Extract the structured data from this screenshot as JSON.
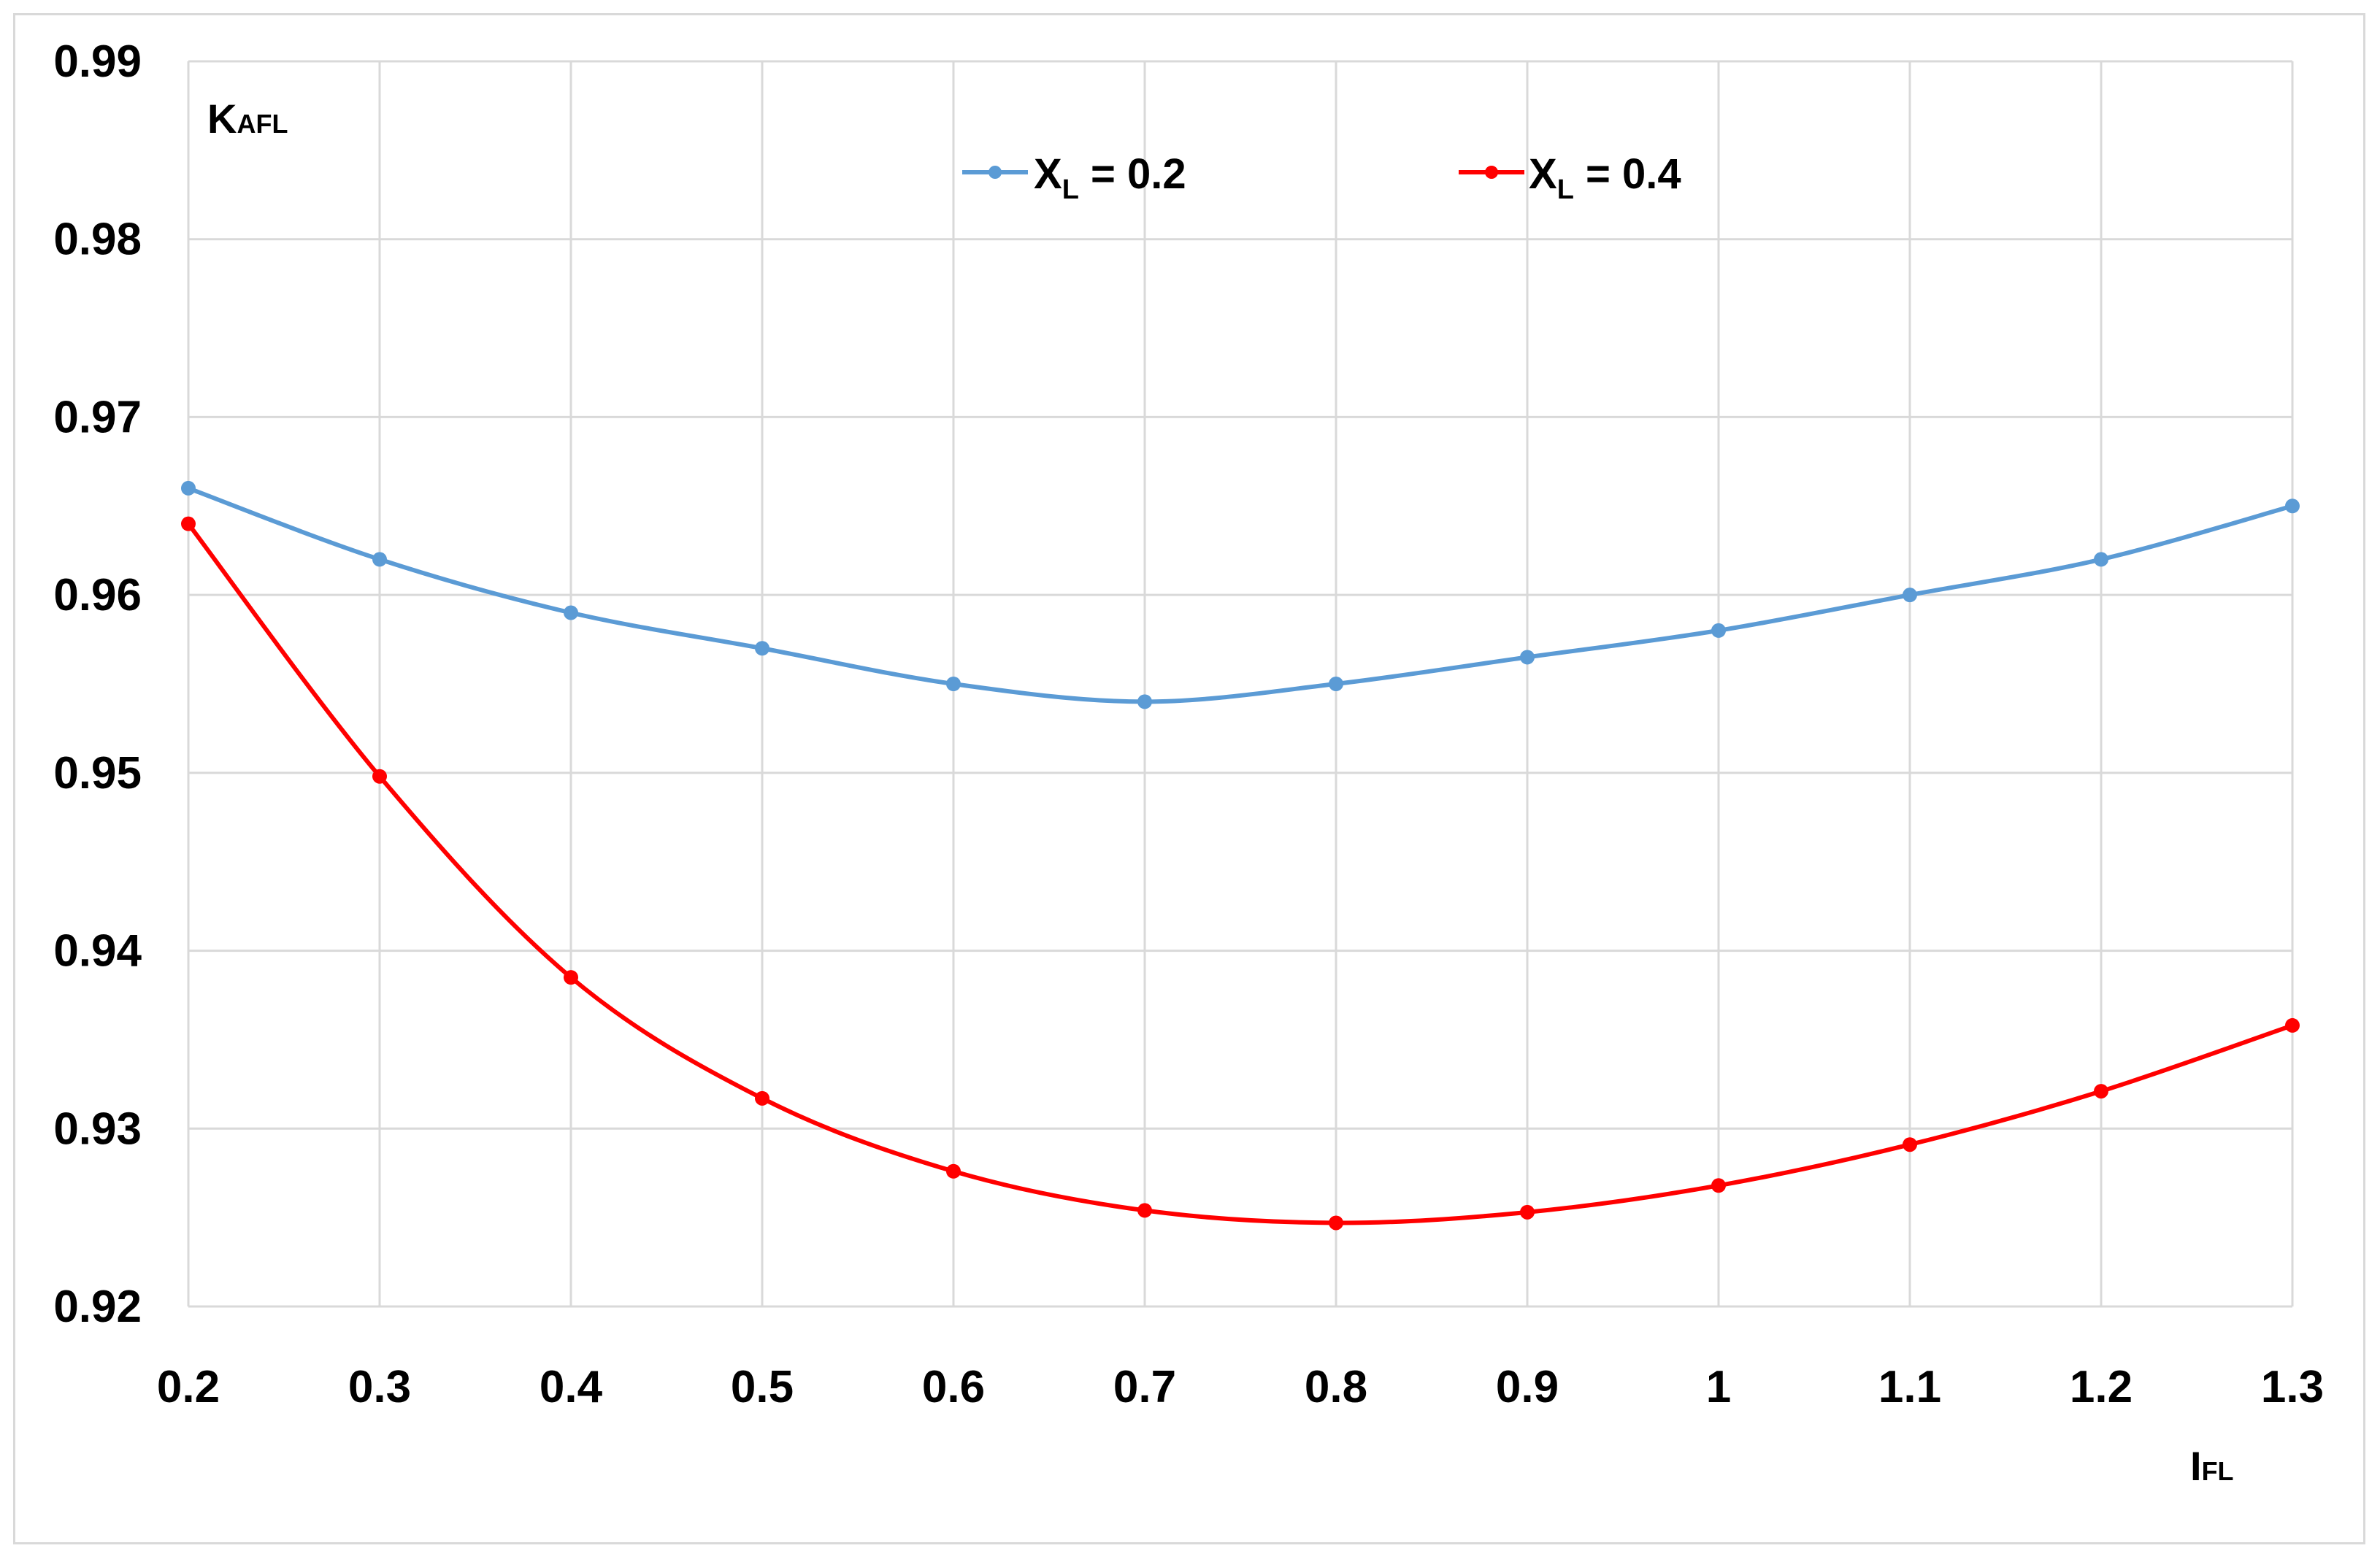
{
  "chart_data": {
    "type": "line",
    "y_axis_label": {
      "main": "K",
      "sub": "AFL"
    },
    "x_axis_label": {
      "main": "I",
      "sub": "FL"
    },
    "x": [
      0.2,
      0.3,
      0.4,
      0.5,
      0.6,
      0.7,
      0.8,
      0.9,
      1.0,
      1.1,
      1.2,
      1.3
    ],
    "x_tick_labels": [
      "0.2",
      "0.3",
      "0.4",
      "0.5",
      "0.6",
      "0.7",
      "0.8",
      "0.9",
      "1",
      "1.1",
      "1.2",
      "1.3"
    ],
    "y_tick_labels": [
      "0.92",
      "0.93",
      "0.94",
      "0.95",
      "0.96",
      "0.97",
      "0.98",
      "0.99"
    ],
    "ylim": [
      0.92,
      0.99
    ],
    "xlim": [
      0.2,
      1.3
    ],
    "grid": true,
    "legend_position": "top-center",
    "series": [
      {
        "name_main": "X",
        "name_sub": "L",
        "name_suffix": " = 0.2",
        "color": "#5b9bd5",
        "values": [
          0.966,
          0.962,
          0.959,
          0.957,
          0.955,
          0.954,
          0.955,
          0.9565,
          0.958,
          0.96,
          0.962,
          0.965
        ]
      },
      {
        "name_main": "X",
        "name_sub": "L",
        "name_suffix": " = 0.4",
        "color": "#ff0000",
        "values": [
          0.964,
          0.9498,
          0.9385,
          0.9317,
          0.9276,
          0.9254,
          0.9247,
          0.9253,
          0.9268,
          0.9291,
          0.9321,
          0.9358
        ]
      }
    ]
  }
}
